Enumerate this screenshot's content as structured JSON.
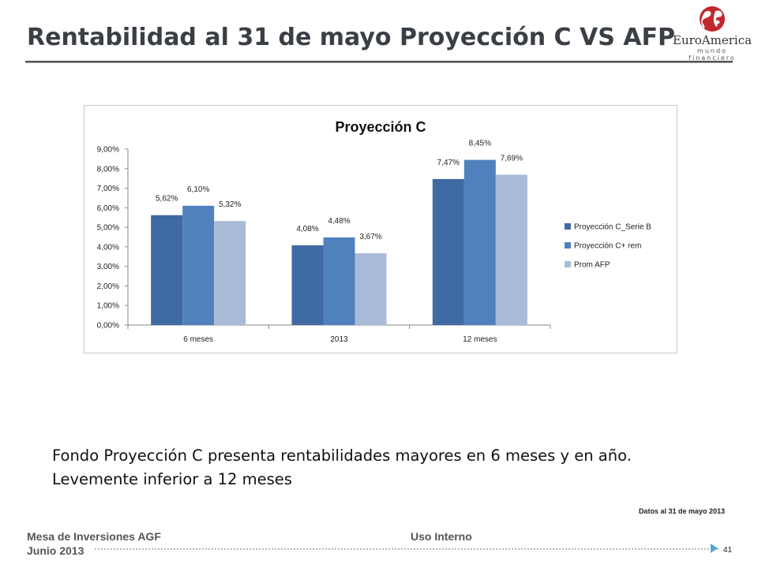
{
  "slide": {
    "title": "Rentabilidad al 31 de mayo Proyección C VS AFP",
    "logo_name": "EuroAmerica",
    "logo_tagline": "mundo financiero",
    "body_lines": [
      "Fondo Proyección C presenta rentabilidades mayores en 6 meses y en año.",
      "Levemente inferior a 12 meses"
    ],
    "note": "Datos al 31 de mayo 2013",
    "footer_left_1": "Mesa de Inversiones AGF",
    "footer_left_2": "Junio 2013",
    "footer_center": "Uso Interno",
    "page_number": "41"
  },
  "colors": {
    "series_1": "#3f6aa3",
    "series_2": "#4f81bd",
    "series_3": "#a9bbd9",
    "axis": "#8a8a8a",
    "title_text": "#3a3f46",
    "page_arrow": "#4fa6d8"
  },
  "chart_data": {
    "type": "bar",
    "title": "Proyección C",
    "categories": [
      "6 meses",
      "2013",
      "12 meses"
    ],
    "series": [
      {
        "name": "Proyección C_Serie B",
        "values": [
          5.62,
          4.08,
          7.47
        ],
        "labels": [
          "5,62%",
          "4,08%",
          "7,47%"
        ]
      },
      {
        "name": "Proyección C+ rem",
        "values": [
          6.1,
          4.48,
          8.45
        ],
        "labels": [
          "6,10%",
          "4,48%",
          "8,45%"
        ]
      },
      {
        "name": "Prom AFP",
        "values": [
          5.32,
          3.67,
          7.69
        ],
        "labels": [
          "5,32%",
          "3,67%",
          "7,69%"
        ]
      }
    ],
    "ylim": [
      0,
      9
    ],
    "yticks": [
      0,
      1,
      2,
      3,
      4,
      5,
      6,
      7,
      8,
      9
    ],
    "ytick_labels": [
      "0,00%",
      "1,00%",
      "2,00%",
      "3,00%",
      "4,00%",
      "5,00%",
      "6,00%",
      "7,00%",
      "8,00%",
      "9,00%"
    ],
    "xlabel": "",
    "ylabel": "",
    "grid": false,
    "legend_position": "right"
  }
}
